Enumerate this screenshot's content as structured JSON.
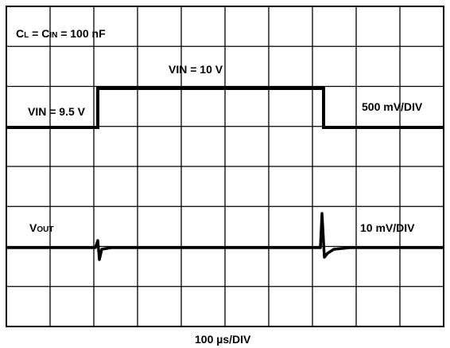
{
  "cap_label": [
    "C",
    "L",
    " = C",
    "IN",
    " = 100 nF"
  ],
  "vin_high": "VIN = 10 V",
  "vin_low": "VIN = 9.5 V",
  "top_scale": "500 mV/DIV",
  "vout_label": [
    "V",
    "OUT"
  ],
  "bottom_scale": "10 mV/DIV",
  "time_scale": "100 µs/DIV"
}
